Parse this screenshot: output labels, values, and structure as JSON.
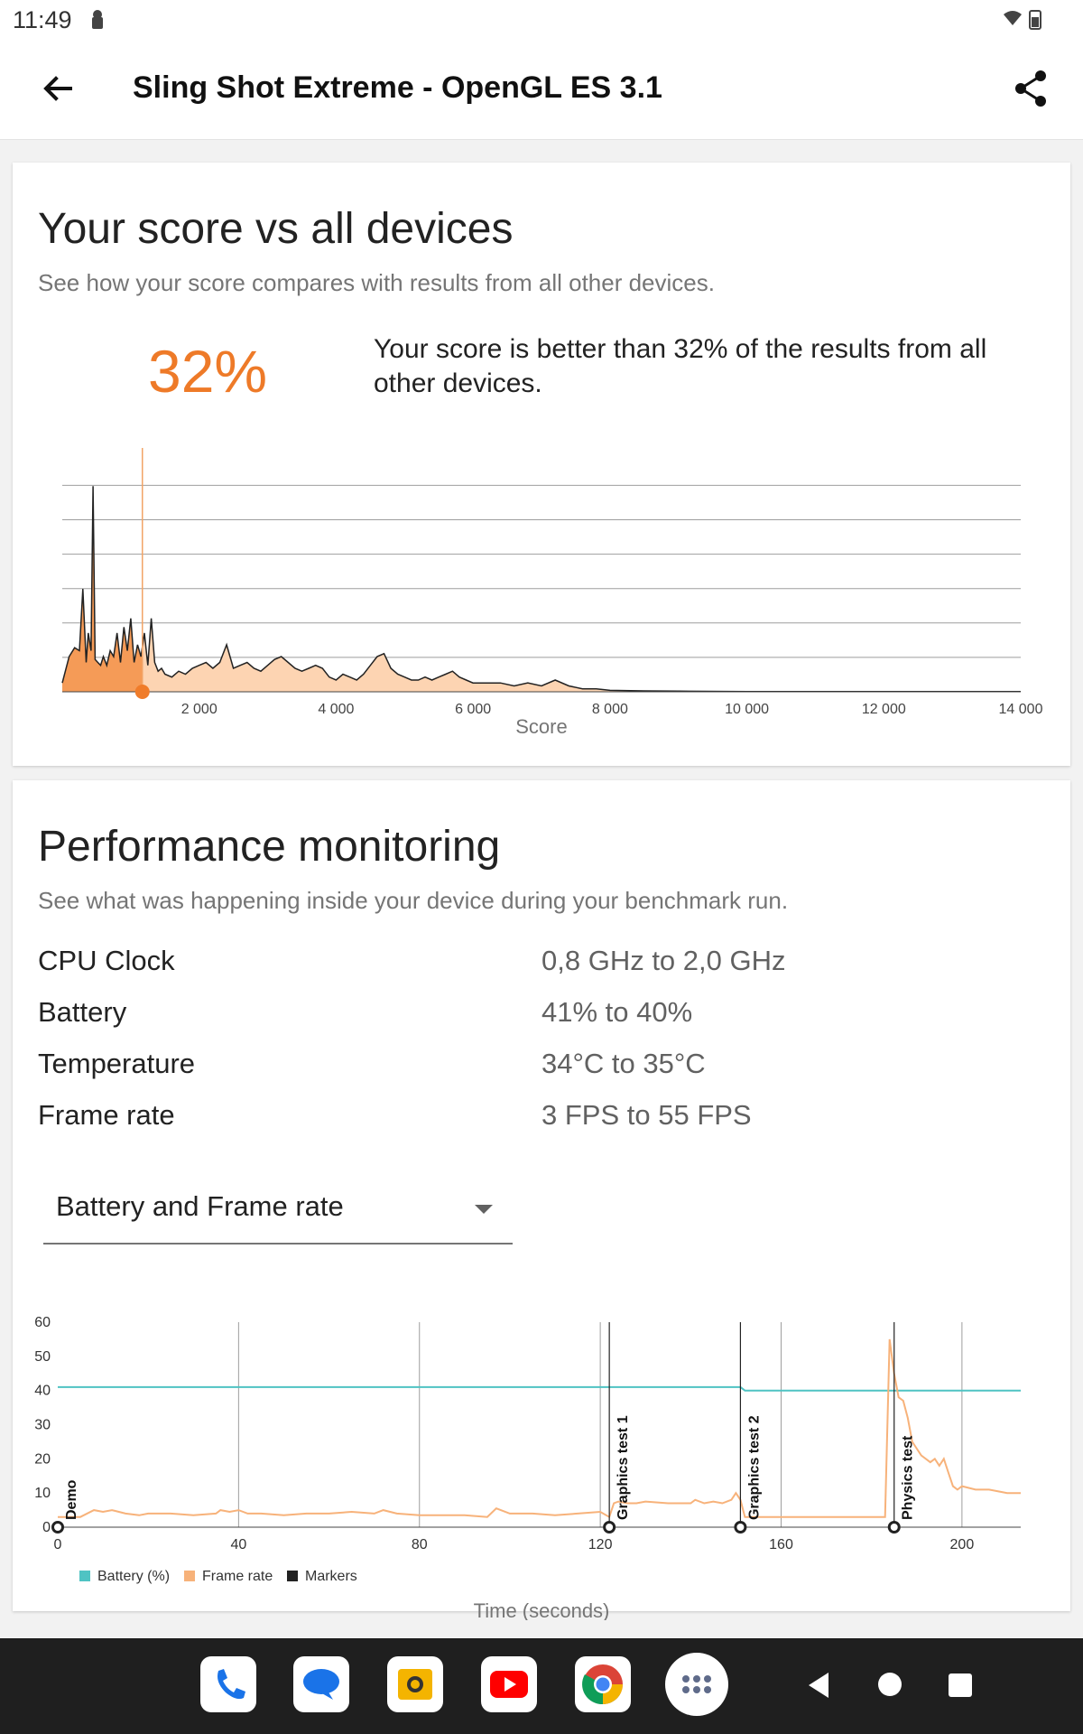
{
  "status": {
    "time": "11:49"
  },
  "appbar": {
    "title": "Sling Shot Extreme - OpenGL ES 3.1"
  },
  "score_card": {
    "title": "Your score vs all devices",
    "subtitle": "See how your score compares with results from all other devices.",
    "percent": "32%",
    "description": "Your score is better than 32% of the results from all other devices."
  },
  "perf_card": {
    "title": "Performance monitoring",
    "subtitle": "See what was happening inside your device during your benchmark run.",
    "rows": [
      {
        "label": "CPU Clock",
        "value": "0,8 GHz to 2,0 GHz"
      },
      {
        "label": "Battery",
        "value": "41% to 40%"
      },
      {
        "label": "Temperature",
        "value": "34°C to 35°C"
      },
      {
        "label": "Frame rate",
        "value": "3 FPS to 55 FPS"
      }
    ],
    "dropdown_selected": "Battery and Frame rate"
  },
  "chart_data": [
    {
      "type": "area",
      "xlabel": "Score",
      "ylabel": "",
      "xlim": [
        0,
        14000
      ],
      "x_ticks": [
        "2 000",
        "4 000",
        "6 000",
        "8 000",
        "10 000",
        "12 000",
        "14 000"
      ],
      "x_tick_values": [
        2000,
        4000,
        6000,
        8000,
        10000,
        12000,
        14000
      ],
      "your_score": 1170,
      "fill_color_below": "#f59b57",
      "fill_color_above": "#fdd4b2",
      "x": [
        0,
        100,
        180,
        250,
        300,
        350,
        380,
        420,
        450,
        480,
        520,
        560,
        600,
        650,
        700,
        750,
        800,
        850,
        900,
        950,
        1000,
        1050,
        1100,
        1150,
        1200,
        1250,
        1300,
        1350,
        1400,
        1450,
        1500,
        1600,
        1700,
        1800,
        1900,
        2000,
        2100,
        2200,
        2300,
        2400,
        2500,
        2600,
        2700,
        2800,
        2900,
        3000,
        3100,
        3200,
        3300,
        3400,
        3500,
        3600,
        3700,
        3800,
        3900,
        4000,
        4100,
        4200,
        4300,
        4400,
        4500,
        4600,
        4700,
        4800,
        4900,
        5000,
        5100,
        5200,
        5300,
        5400,
        5500,
        5600,
        5700,
        5800,
        5900,
        6000,
        6200,
        6400,
        6600,
        6800,
        7000,
        7200,
        7400,
        7600,
        7800,
        8000,
        8500,
        9000,
        10000,
        11000,
        12000,
        13000,
        14000
      ],
      "values": [
        3,
        12,
        15,
        14,
        35,
        10,
        20,
        14,
        70,
        11,
        10,
        9,
        12,
        9,
        14,
        12,
        20,
        10,
        22,
        14,
        25,
        10,
        16,
        12,
        20,
        9,
        25,
        10,
        7,
        8,
        6,
        5,
        7,
        6,
        8,
        9,
        10,
        8,
        10,
        16,
        8,
        9,
        10,
        8,
        7,
        9,
        11,
        12,
        10,
        8,
        7,
        8,
        9,
        8,
        5,
        4,
        6,
        5,
        4,
        6,
        9,
        12,
        13,
        8,
        6,
        5,
        4,
        4,
        5,
        4,
        5,
        6,
        7,
        5,
        4,
        3,
        3,
        3,
        2,
        3,
        2,
        4,
        2,
        1,
        1,
        0.5,
        0.3,
        0.2,
        0.1,
        0.1,
        0.1,
        0.1,
        0.1
      ],
      "ylim": [
        0,
        75
      ]
    },
    {
      "type": "line",
      "xlabel": "Time (seconds)",
      "ylabel": "",
      "xlim": [
        0,
        213
      ],
      "ylim": [
        0,
        60
      ],
      "x_ticks": [
        0,
        40,
        80,
        120,
        160,
        200
      ],
      "y_ticks": [
        0,
        10,
        20,
        30,
        40,
        50,
        60
      ],
      "legend": [
        "Battery (%)",
        "Frame rate",
        "Markers"
      ],
      "legend_placement": "bottom-left",
      "colors": {
        "battery": "#4fc3c3",
        "frame_rate": "#f7b27a",
        "markers": "#222222"
      },
      "series": [
        {
          "name": "Battery (%)",
          "x": [
            0,
            151,
            152,
            213
          ],
          "values": [
            41,
            41,
            40,
            40
          ]
        },
        {
          "name": "Frame rate",
          "x": [
            0,
            5,
            8,
            10,
            12,
            15,
            18,
            20,
            25,
            30,
            35,
            36,
            38,
            40,
            42,
            45,
            50,
            55,
            60,
            65,
            70,
            72,
            75,
            80,
            85,
            90,
            95,
            97,
            100,
            105,
            110,
            115,
            120,
            122,
            123,
            124,
            126,
            128,
            130,
            135,
            140,
            141,
            143,
            145,
            147,
            149,
            150,
            151,
            152,
            153,
            155,
            158,
            160,
            165,
            170,
            175,
            180,
            183,
            184,
            185,
            186,
            187,
            188,
            189,
            190,
            191,
            192,
            193,
            194,
            195,
            196,
            197,
            198,
            199,
            200,
            203,
            206,
            210,
            213
          ],
          "values": [
            3,
            3,
            5,
            4.5,
            5,
            4,
            3.5,
            4,
            4,
            3.5,
            4,
            5,
            4.5,
            5,
            4,
            4,
            3.5,
            4,
            4,
            4.5,
            4,
            5,
            4,
            3.5,
            3.5,
            3.5,
            3,
            5.5,
            4,
            4,
            3.5,
            4,
            4.5,
            3,
            7,
            7.5,
            7,
            7,
            7.5,
            7,
            7,
            8,
            7,
            7.5,
            7,
            8,
            10,
            8,
            3,
            3,
            3,
            3,
            3,
            3,
            3,
            3,
            3,
            3,
            55,
            45,
            38,
            37,
            32,
            25,
            23,
            21,
            20,
            19,
            20,
            18,
            20,
            16,
            12,
            11,
            12,
            11,
            11,
            10,
            10
          ]
        }
      ],
      "markers": [
        {
          "label": "Demo",
          "x": 0
        },
        {
          "label": "Graphics test 1",
          "x": 122
        },
        {
          "label": "Graphics test 2",
          "x": 151
        },
        {
          "label": "Physics test",
          "x": 185
        }
      ]
    }
  ]
}
